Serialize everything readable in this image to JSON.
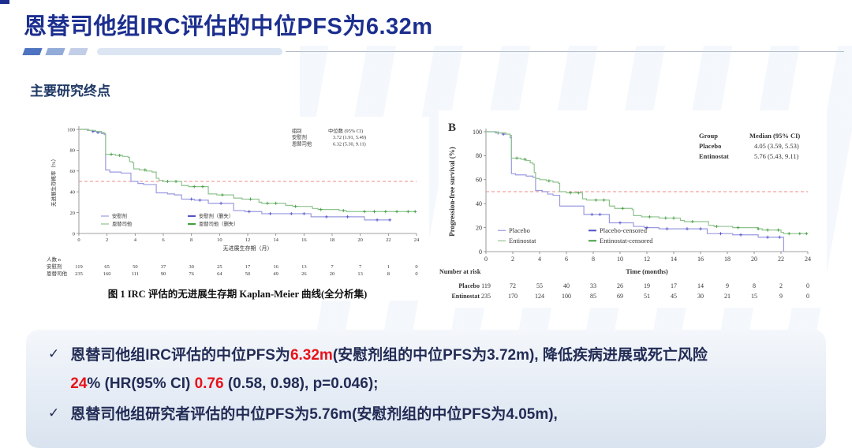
{
  "slide": {
    "title": "恩替司他组IRC评估的中位PFS为6.32m",
    "section_label": "主要研究终点"
  },
  "colors": {
    "title": "#1c2f8f",
    "section": "#1f3864",
    "summary_text": "#222c55",
    "accent_red": "#e8121a",
    "divider_1": "#4e73c0",
    "divider_2": "#92abd8",
    "divider_3": "#c2cee8",
    "divider_4": "#dce5f2",
    "placebo_line": "#9a9ae0",
    "placebo_censor": "#5252c8",
    "entinostat_line": "#8fc38f",
    "entinostat_censor": "#3f9e3f",
    "reference_line": "#f08a8a",
    "axis": "#808080",
    "chart_text": "#333333"
  },
  "summary": {
    "check": "✓",
    "bullets": [
      {
        "parts": [
          {
            "text": "恩替司他组IRC评估的中位PFS为",
            "red": false
          },
          {
            "text": "6.32m",
            "red": true
          },
          {
            "text": "(安慰剂组的中位PFS为3.72m), 降低疾病进展或死亡风险",
            "red": false
          },
          {
            "br": true
          },
          {
            "text": "24",
            "red": true
          },
          {
            "text": "%  (HR(95% CI) ",
            "red": false
          },
          {
            "text": "0.76",
            "red": true
          },
          {
            "text": " (0.58, 0.98), p=0.046);",
            "red": false
          }
        ]
      },
      {
        "parts": [
          {
            "text": "恩替司他组研究者评估的中位PFS为5.76m(安慰剂组的中位PFS为4.05m),",
            "red": false
          }
        ]
      }
    ]
  },
  "chart_data": [
    {
      "type": "line",
      "subtype": "kaplan-meier",
      "title": "图 1 IRC 评估的无进展生存期 Kaplan-Meier 曲线(全分析集)",
      "xlabel": "无进展生存期（月）",
      "ylabel": "无进展生存概率（%）",
      "xlim": [
        0,
        24
      ],
      "ylim": [
        0,
        100
      ],
      "xticks": [
        0,
        2,
        4,
        6,
        8,
        10,
        12,
        14,
        16,
        18,
        20,
        22,
        24
      ],
      "yticks": [
        0,
        20,
        40,
        60,
        80,
        100
      ],
      "reference_line_y": 50,
      "legend_table": {
        "header": [
          "组别",
          "中位数 (95% CI)"
        ],
        "rows": [
          [
            "安慰剂",
            "3.72 (1.91, 5.49)"
          ],
          [
            "恩替司他",
            "6.32 (5.30, 9.11)"
          ]
        ]
      },
      "legend_items": [
        {
          "label": "安慰剂",
          "color": "#9a9ae0"
        },
        {
          "label": "恩替司他",
          "color": "#8fc38f"
        },
        {
          "label": "安慰剂（删失）",
          "color": "#5252c8"
        },
        {
          "label": "恩替司他（删失）",
          "color": "#3f9e3f"
        }
      ],
      "series": [
        {
          "name": "安慰剂",
          "color": "#9a9ae0",
          "censor_color": "#5252c8",
          "steps": [
            [
              0,
              100
            ],
            [
              0.6,
              99
            ],
            [
              1,
              98
            ],
            [
              1.3,
              97
            ],
            [
              1.6,
              96
            ],
            [
              1.8,
              95
            ],
            [
              1.9,
              61
            ],
            [
              2.2,
              59
            ],
            [
              3,
              58
            ],
            [
              3.7,
              50
            ],
            [
              4.2,
              48
            ],
            [
              4.6,
              47
            ],
            [
              5.5,
              39
            ],
            [
              6.3,
              38
            ],
            [
              6.8,
              37
            ],
            [
              7.3,
              33
            ],
            [
              8.2,
              32
            ],
            [
              9.2,
              29
            ],
            [
              11,
              22
            ],
            [
              11.8,
              21
            ],
            [
              13,
              19
            ],
            [
              16.5,
              16
            ],
            [
              20.3,
              13
            ],
            [
              22.2,
              13
            ]
          ],
          "censor_x": [
            1,
            1.35,
            8,
            8.6,
            10.1,
            12.1,
            13.6,
            15.1,
            16,
            17.6,
            19.1,
            21.2,
            22.1
          ]
        },
        {
          "name": "恩替司他",
          "color": "#8fc38f",
          "censor_color": "#3f9e3f",
          "steps": [
            [
              0,
              100
            ],
            [
              0.7,
              99
            ],
            [
              1.2,
              98
            ],
            [
              1.6,
              97
            ],
            [
              1.8,
              96
            ],
            [
              1.9,
              76
            ],
            [
              2.6,
              75
            ],
            [
              3.1,
              74
            ],
            [
              3.5,
              73
            ],
            [
              3.6,
              69
            ],
            [
              3.8,
              68
            ],
            [
              3.9,
              62
            ],
            [
              4.3,
              61
            ],
            [
              4.8,
              60
            ],
            [
              5.2,
              59
            ],
            [
              5.5,
              53
            ],
            [
              5.7,
              51
            ],
            [
              6,
              50
            ],
            [
              7.3,
              46
            ],
            [
              7.8,
              45
            ],
            [
              9.2,
              38
            ],
            [
              9.8,
              37
            ],
            [
              11,
              34
            ],
            [
              11.6,
              33
            ],
            [
              12.8,
              30
            ],
            [
              13,
              29
            ],
            [
              14.7,
              27
            ],
            [
              15.2,
              26
            ],
            [
              16.6,
              24
            ],
            [
              17,
              23
            ],
            [
              18.5,
              22
            ],
            [
              19,
              21
            ],
            [
              24,
              21
            ]
          ],
          "censor_x": [
            2.3,
            2.9,
            4.7,
            6.3,
            6.9,
            8.2,
            8.8,
            10.2,
            12.2,
            13.4,
            14,
            15.4,
            17.2,
            18.8,
            20.3,
            21,
            21.8,
            22.6,
            23.4,
            23.9
          ]
        }
      ],
      "at_risk": {
        "title": "人数 n",
        "rows": [
          {
            "label": "安慰剂",
            "values": [
              119,
              65,
              50,
              37,
              30,
              25,
              17,
              16,
              13,
              7,
              7,
              1,
              0
            ]
          },
          {
            "label": "恩替司他",
            "values": [
              235,
              160,
              111,
              90,
              76,
              64,
              50,
              49,
              26,
              20,
              13,
              8,
              0
            ]
          }
        ]
      }
    },
    {
      "type": "line",
      "subtype": "kaplan-meier",
      "panel_label": "B",
      "title": "",
      "xlabel": "Time (months)",
      "ylabel": "Progression-free survival (%)",
      "xlim": [
        0,
        24
      ],
      "ylim": [
        0,
        100
      ],
      "xticks": [
        0,
        2,
        4,
        6,
        8,
        10,
        12,
        14,
        16,
        18,
        20,
        22,
        24
      ],
      "yticks": [
        0,
        20,
        40,
        60,
        80,
        100
      ],
      "reference_line_y": 50,
      "legend_table": {
        "header": [
          "Group",
          "Median (95% CI)"
        ],
        "rows": [
          [
            "Placebo",
            "4.05 (3.59, 5.53)"
          ],
          [
            "Entinostat",
            "5.76 (5.43, 9.11)"
          ]
        ]
      },
      "legend_items": [
        {
          "label": "Placebo",
          "color": "#9a9ae0"
        },
        {
          "label": "Entinostat",
          "color": "#8fc38f"
        },
        {
          "label": "Placebo-censored",
          "color": "#5252c8"
        },
        {
          "label": "Entinostat-censored",
          "color": "#3f9e3f"
        }
      ],
      "series": [
        {
          "name": "Placebo",
          "color": "#9a9ae0",
          "censor_color": "#5252c8",
          "steps": [
            [
              0,
              100
            ],
            [
              0.7,
              99
            ],
            [
              1.2,
              98
            ],
            [
              1.8,
              95
            ],
            [
              1.9,
              65
            ],
            [
              2.2,
              64
            ],
            [
              3,
              63
            ],
            [
              3.5,
              62
            ],
            [
              3.7,
              51
            ],
            [
              4.2,
              50
            ],
            [
              4.6,
              48
            ],
            [
              5,
              47
            ],
            [
              5.5,
              38
            ],
            [
              7.3,
              31
            ],
            [
              9.2,
              24
            ],
            [
              11,
              21
            ],
            [
              11.8,
              20
            ],
            [
              12.9,
              19
            ],
            [
              16.5,
              15
            ],
            [
              18.4,
              14
            ],
            [
              20.3,
              12
            ],
            [
              22.2,
              0
            ]
          ],
          "censor_x": [
            0.9,
            1.3,
            7.9,
            8.5,
            10,
            12,
            13.5,
            15,
            16,
            17.5,
            19,
            21,
            21.9
          ]
        },
        {
          "name": "Entinostat",
          "color": "#8fc38f",
          "censor_color": "#3f9e3f",
          "steps": [
            [
              0,
              100
            ],
            [
              0.8,
              99
            ],
            [
              1.5,
              98
            ],
            [
              1.8,
              97
            ],
            [
              1.9,
              78
            ],
            [
              2.6,
              77
            ],
            [
              3,
              76
            ],
            [
              3.3,
              74
            ],
            [
              3.5,
              73
            ],
            [
              3.6,
              66
            ],
            [
              3.7,
              61
            ],
            [
              4,
              60
            ],
            [
              4.5,
              59
            ],
            [
              5,
              58
            ],
            [
              5.4,
              57
            ],
            [
              5.5,
              50
            ],
            [
              6,
              49
            ],
            [
              7.2,
              44
            ],
            [
              7.5,
              43
            ],
            [
              9.2,
              38
            ],
            [
              9.6,
              36
            ],
            [
              10.9,
              35
            ],
            [
              11,
              30
            ],
            [
              11.6,
              29
            ],
            [
              12.9,
              28
            ],
            [
              14.5,
              26
            ],
            [
              14.8,
              25
            ],
            [
              16.6,
              22
            ],
            [
              17,
              21
            ],
            [
              18.4,
              20
            ],
            [
              20.3,
              19
            ],
            [
              20.6,
              18
            ],
            [
              22,
              16
            ],
            [
              22.2,
              15
            ],
            [
              24,
              15
            ]
          ],
          "censor_x": [
            2.3,
            2.9,
            4.7,
            6.3,
            6.9,
            8.2,
            8.8,
            10.2,
            12.2,
            13.4,
            14,
            15.4,
            17.2,
            18.8,
            20.3,
            21,
            21.8,
            22.6,
            23.4,
            23.9
          ]
        }
      ],
      "at_risk": {
        "title": "Number at risk",
        "rows": [
          {
            "label": "Placebo",
            "values": [
              119,
              72,
              55,
              40,
              33,
              26,
              19,
              17,
              14,
              9,
              8,
              2,
              0
            ]
          },
          {
            "label": "Entinostat",
            "values": [
              235,
              170,
              124,
              100,
              85,
              69,
              51,
              45,
              30,
              21,
              15,
              9,
              0
            ]
          }
        ]
      }
    }
  ]
}
